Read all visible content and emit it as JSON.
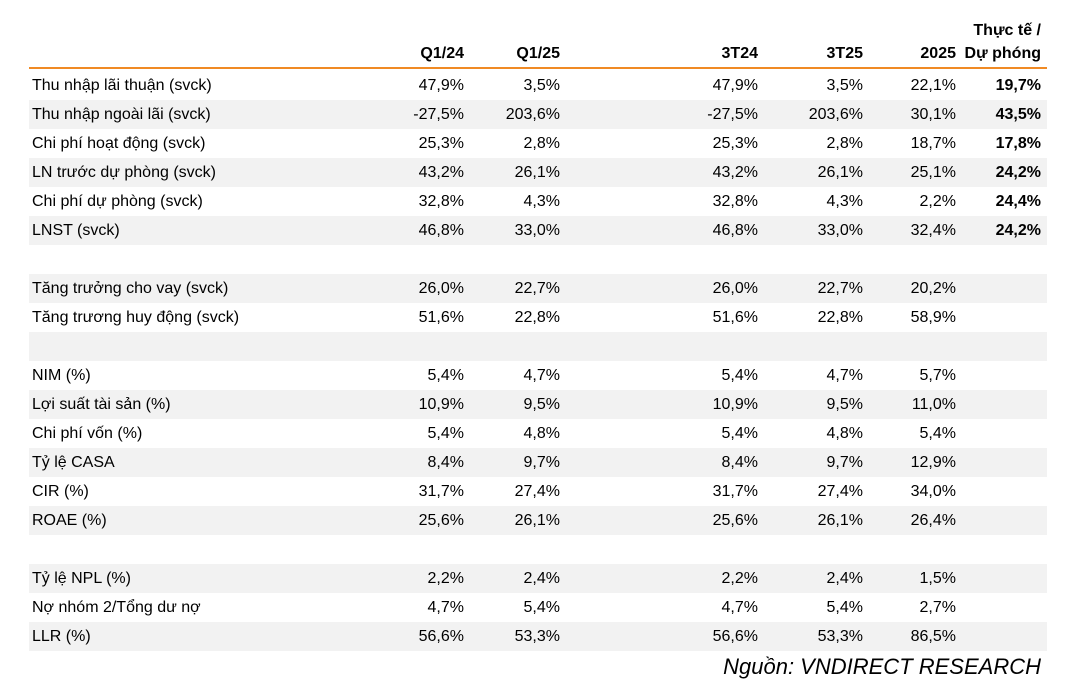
{
  "header": {
    "columns": [
      "Q1/24",
      "Q1/25",
      "3T24",
      "3T25",
      "2025"
    ],
    "last_line1": "Thực tế /",
    "last_line2": "Dự phóng"
  },
  "rows": [
    {
      "label": "Thu nhập lãi thuận (svck)",
      "values": [
        "47,9%",
        "3,5%",
        "47,9%",
        "3,5%",
        "22,1%",
        "19,7%"
      ]
    },
    {
      "label": "Thu nhập ngoài lãi (svck)",
      "values": [
        "-27,5%",
        "203,6%",
        "-27,5%",
        "203,6%",
        "30,1%",
        "43,5%"
      ]
    },
    {
      "label": "Chi phí hoạt động (svck)",
      "values": [
        "25,3%",
        "2,8%",
        "25,3%",
        "2,8%",
        "18,7%",
        "17,8%"
      ]
    },
    {
      "label": "LN trước dự phòng (svck)",
      "values": [
        "43,2%",
        "26,1%",
        "43,2%",
        "26,1%",
        "25,1%",
        "24,2%"
      ]
    },
    {
      "label": "Chi phí dự phòng (svck)",
      "values": [
        "32,8%",
        "4,3%",
        "32,8%",
        "4,3%",
        "2,2%",
        "24,4%"
      ]
    },
    {
      "label": "LNST (svck)",
      "values": [
        "46,8%",
        "33,0%",
        "46,8%",
        "33,0%",
        "32,4%",
        "24,2%"
      ]
    },
    {
      "label": "",
      "values": [
        "",
        "",
        "",
        "",
        "",
        ""
      ]
    },
    {
      "label": "Tăng trưởng cho vay (svck)",
      "values": [
        "26,0%",
        "22,7%",
        "26,0%",
        "22,7%",
        "20,2%",
        ""
      ]
    },
    {
      "label": "Tăng trương huy động (svck)",
      "values": [
        "51,6%",
        "22,8%",
        "51,6%",
        "22,8%",
        "58,9%",
        ""
      ]
    },
    {
      "label": "",
      "values": [
        "",
        "",
        "",
        "",
        "",
        ""
      ]
    },
    {
      "label": "NIM (%)",
      "values": [
        "5,4%",
        "4,7%",
        "5,4%",
        "4,7%",
        "5,7%",
        ""
      ]
    },
    {
      "label": "Lợi suất tài sản (%)",
      "values": [
        "10,9%",
        "9,5%",
        "10,9%",
        "9,5%",
        "11,0%",
        ""
      ]
    },
    {
      "label": "Chi phí vốn (%)",
      "values": [
        "5,4%",
        "4,8%",
        "5,4%",
        "4,8%",
        "5,4%",
        ""
      ]
    },
    {
      "label": "Tỷ lệ CASA",
      "values": [
        "8,4%",
        "9,7%",
        "8,4%",
        "9,7%",
        "12,9%",
        ""
      ]
    },
    {
      "label": "CIR (%)",
      "values": [
        "31,7%",
        "27,4%",
        "31,7%",
        "27,4%",
        "34,0%",
        ""
      ]
    },
    {
      "label": "ROAE (%)",
      "values": [
        "25,6%",
        "26,1%",
        "25,6%",
        "26,1%",
        "26,4%",
        ""
      ]
    },
    {
      "label": "",
      "values": [
        "",
        "",
        "",
        "",
        "",
        ""
      ]
    },
    {
      "label": "Tỷ lệ NPL (%)",
      "values": [
        "2,2%",
        "2,4%",
        "2,2%",
        "2,4%",
        "1,5%",
        ""
      ]
    },
    {
      "label": "Nợ nhóm 2/Tổng dư nợ",
      "values": [
        "4,7%",
        "5,4%",
        "4,7%",
        "5,4%",
        "2,7%",
        ""
      ]
    },
    {
      "label": "LLR (%)",
      "values": [
        "56,6%",
        "53,3%",
        "56,6%",
        "53,3%",
        "86,5%",
        ""
      ]
    }
  ],
  "source": "Nguồn: VNDIRECT RESEARCH"
}
